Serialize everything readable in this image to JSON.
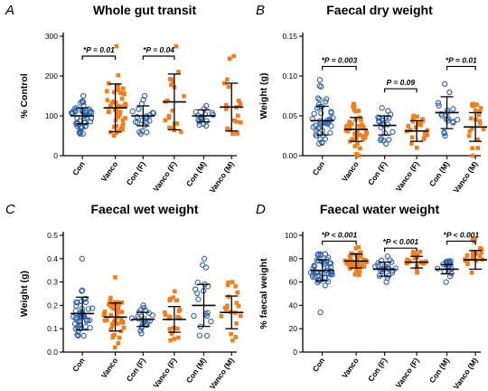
{
  "chart_data": [
    {
      "type": "scatter",
      "panel_letter": "A",
      "title": "Whole gut transit",
      "ylabel": "% Control",
      "ylim": [
        0,
        300
      ],
      "yticks": [
        0,
        100,
        200,
        300
      ],
      "tick_labels": [
        "0",
        "100",
        "200",
        "300"
      ],
      "categories": [
        "Con",
        "Vanco",
        "Con (F)",
        "Vanco (F)",
        "Con (M)",
        "Vanco (M)"
      ],
      "series": [
        {
          "category": "Con",
          "color": "#2E5FA8",
          "marker": "circle",
          "mean": 100,
          "sd": 20,
          "n": 45,
          "min": 55,
          "max": 150
        },
        {
          "category": "Vanco",
          "color": "#F07F21",
          "marker": "square",
          "mean": 120,
          "sd": 60,
          "n": 45,
          "min": 50,
          "max": 275
        },
        {
          "category": "Con (F)",
          "color": "#2E5FA8",
          "marker": "circle",
          "mean": 100,
          "sd": 25,
          "n": 22,
          "min": 55,
          "max": 150
        },
        {
          "category": "Vanco (F)",
          "color": "#F07F21",
          "marker": "square",
          "mean": 135,
          "sd": 70,
          "n": 20,
          "min": 60,
          "max": 275
        },
        {
          "category": "Con (M)",
          "color": "#2E5FA8",
          "marker": "circle",
          "mean": 100,
          "sd": 15,
          "n": 18,
          "min": 75,
          "max": 125
        },
        {
          "category": "Vanco (M)",
          "color": "#F07F21",
          "marker": "square",
          "mean": 122,
          "sd": 60,
          "n": 20,
          "min": 55,
          "max": 250
        }
      ],
      "comparisons": [
        {
          "from": "Con",
          "to": "Vanco",
          "label": "*P = 0.01",
          "y": 250
        },
        {
          "from": "Con (F)",
          "to": "Vanco (F)",
          "label": "*P = 0.04",
          "y": 250
        }
      ]
    },
    {
      "type": "scatter",
      "panel_letter": "B",
      "title": "Faecal dry weight",
      "ylabel": "Weight (g)",
      "ylim": [
        0,
        0.15
      ],
      "yticks": [
        0,
        0.05,
        0.1,
        0.15
      ],
      "tick_labels": [
        "0.00",
        "0.05",
        "0.10",
        "0.15"
      ],
      "categories": [
        "Con",
        "Vanco",
        "Con (F)",
        "Vanco (F)",
        "Con (M)",
        "Vanco (M)"
      ],
      "series": [
        {
          "category": "Con",
          "color": "#2E5FA8",
          "marker": "circle",
          "mean": 0.044,
          "sd": 0.018,
          "n": 45,
          "min": 0.015,
          "max": 0.095
        },
        {
          "category": "Vanco",
          "color": "#F07F21",
          "marker": "square",
          "mean": 0.033,
          "sd": 0.015,
          "n": 45,
          "min": 0.0,
          "max": 0.065
        },
        {
          "category": "Con (F)",
          "color": "#2E5FA8",
          "marker": "circle",
          "mean": 0.038,
          "sd": 0.012,
          "n": 22,
          "min": 0.015,
          "max": 0.06
        },
        {
          "category": "Vanco (F)",
          "color": "#F07F21",
          "marker": "square",
          "mean": 0.031,
          "sd": 0.013,
          "n": 22,
          "min": 0.01,
          "max": 0.05
        },
        {
          "category": "Con (M)",
          "color": "#2E5FA8",
          "marker": "circle",
          "mean": 0.054,
          "sd": 0.02,
          "n": 18,
          "min": 0.025,
          "max": 0.09
        },
        {
          "category": "Vanco (M)",
          "color": "#F07F21",
          "marker": "square",
          "mean": 0.036,
          "sd": 0.018,
          "n": 20,
          "min": 0.0,
          "max": 0.065
        }
      ],
      "comparisons": [
        {
          "from": "Con",
          "to": "Vanco",
          "label": "*P = 0.003",
          "y": 0.112
        },
        {
          "from": "Con (F)",
          "to": "Vanco (F)",
          "label": "P = 0.09",
          "y": 0.084
        },
        {
          "from": "Con (M)",
          "to": "Vanco (M)",
          "label": "*P = 0.01",
          "y": 0.112
        }
      ]
    },
    {
      "type": "scatter",
      "panel_letter": "C",
      "title": "Faecal wet weight",
      "ylabel": "Weight (g)",
      "ylim": [
        0,
        0.5
      ],
      "yticks": [
        0,
        0.1,
        0.2,
        0.3,
        0.4,
        0.5
      ],
      "tick_labels": [
        "0.0",
        "0.1",
        "0.2",
        "0.3",
        "0.4",
        "0.5"
      ],
      "categories": [
        "Con",
        "Vanco",
        "Con (F)",
        "Vanco (F)",
        "Con (M)",
        "Vanco (M)"
      ],
      "series": [
        {
          "category": "Con",
          "color": "#2E5FA8",
          "marker": "circle",
          "mean": 0.165,
          "sd": 0.07,
          "n": 45,
          "min": 0.07,
          "max": 0.4
        },
        {
          "category": "Vanco",
          "color": "#F07F21",
          "marker": "square",
          "mean": 0.15,
          "sd": 0.06,
          "n": 45,
          "min": 0.02,
          "max": 0.32
        },
        {
          "category": "Con (F)",
          "color": "#2E5FA8",
          "marker": "circle",
          "mean": 0.14,
          "sd": 0.03,
          "n": 22,
          "min": 0.08,
          "max": 0.2
        },
        {
          "category": "Vanco (F)",
          "color": "#F07F21",
          "marker": "square",
          "mean": 0.14,
          "sd": 0.055,
          "n": 22,
          "min": 0.05,
          "max": 0.26
        },
        {
          "category": "Con (M)",
          "color": "#2E5FA8",
          "marker": "circle",
          "mean": 0.2,
          "sd": 0.09,
          "n": 18,
          "min": 0.07,
          "max": 0.4
        },
        {
          "category": "Vanco (M)",
          "color": "#F07F21",
          "marker": "square",
          "mean": 0.17,
          "sd": 0.07,
          "n": 20,
          "min": 0.05,
          "max": 0.3
        }
      ],
      "comparisons": []
    },
    {
      "type": "scatter",
      "panel_letter": "D",
      "title": "Faecal water weight",
      "ylabel": "% faecal weight",
      "ylim": [
        0,
        100
      ],
      "yticks": [
        0,
        20,
        40,
        60,
        80,
        100
      ],
      "tick_labels": [
        "0",
        "20",
        "40",
        "60",
        "80",
        "100"
      ],
      "categories": [
        "Con",
        "Vanco",
        "Con (F)",
        "Vanco (F)",
        "Con (M)",
        "Vanco (M)"
      ],
      "series": [
        {
          "category": "Con",
          "color": "#2E5FA8",
          "marker": "circle",
          "mean": 70,
          "sd": 9,
          "n": 45,
          "min": 34,
          "max": 84
        },
        {
          "category": "Vanco",
          "color": "#F07F21",
          "marker": "square",
          "mean": 78,
          "sd": 6,
          "n": 45,
          "min": 66,
          "max": 90
        },
        {
          "category": "Con (F)",
          "color": "#2E5FA8",
          "marker": "circle",
          "mean": 71,
          "sd": 6,
          "n": 22,
          "min": 60,
          "max": 82
        },
        {
          "category": "Vanco (F)",
          "color": "#F07F21",
          "marker": "square",
          "mean": 77,
          "sd": 5,
          "n": 22,
          "min": 68,
          "max": 86
        },
        {
          "category": "Con (M)",
          "color": "#2E5FA8",
          "marker": "circle",
          "mean": 71,
          "sd": 4,
          "n": 18,
          "min": 60,
          "max": 78
        },
        {
          "category": "Vanco (M)",
          "color": "#F07F21",
          "marker": "square",
          "mean": 79,
          "sd": 8,
          "n": 20,
          "min": 68,
          "max": 97
        }
      ],
      "comparisons": [
        {
          "from": "Con",
          "to": "Vanco",
          "label": "*P < 0.001",
          "y": 95
        },
        {
          "from": "Con (F)",
          "to": "Vanco (F)",
          "label": "*P < 0.001",
          "y": 89
        },
        {
          "from": "Con (M)",
          "to": "Vanco (M)",
          "label": "*P < 0.001",
          "y": 95
        }
      ]
    }
  ]
}
